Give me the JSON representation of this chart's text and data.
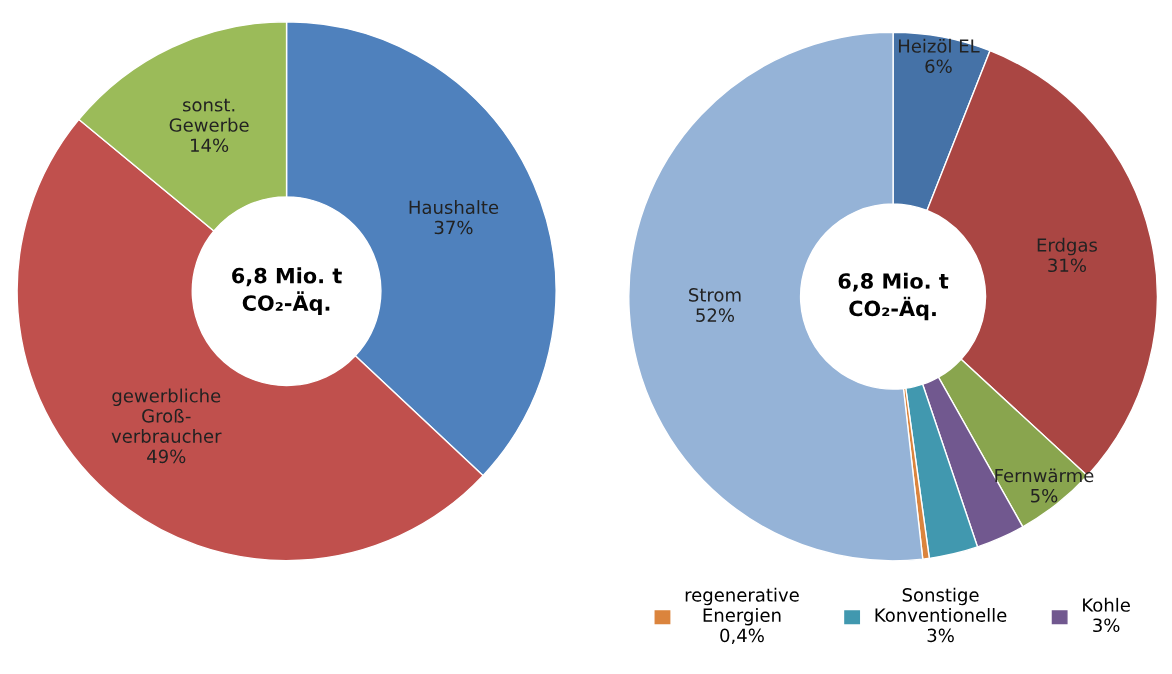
{
  "chart_data": [
    {
      "type": "donut",
      "categories": [
        "Haushalte",
        "gewerbliche\nGroß-\nverbraucher",
        "sonst.\nGewerbe"
      ],
      "values": [
        37,
        49,
        14
      ],
      "colors": [
        "#4f81bd",
        "#c0504d",
        "#9bbb59"
      ],
      "value_labels": [
        "37%",
        "49%",
        "14%"
      ],
      "annotations": [
        "6,8 Mio. t\nCO₂-Äq."
      ],
      "legend": false
    },
    {
      "type": "donut",
      "categories": [
        "Heizöl EL",
        "Erdgas",
        "Fernwärme",
        "Kohle",
        "Sonstige\nKonventionelle",
        "regenerative\nEnergien",
        "Strom"
      ],
      "values": [
        6,
        31,
        5,
        3,
        3,
        0.4,
        52
      ],
      "colors": [
        "#4572a7",
        "#aa4643",
        "#89a54e",
        "#71588f",
        "#4198af",
        "#db843d",
        "#95b3d7"
      ],
      "value_labels": [
        "6%",
        "31%",
        "5%",
        "3%",
        "3%",
        "0,4%",
        "52%"
      ],
      "annotations": [
        "6,8 Mio. t\nCO₂-Äq."
      ],
      "legend": "bottom"
    }
  ]
}
